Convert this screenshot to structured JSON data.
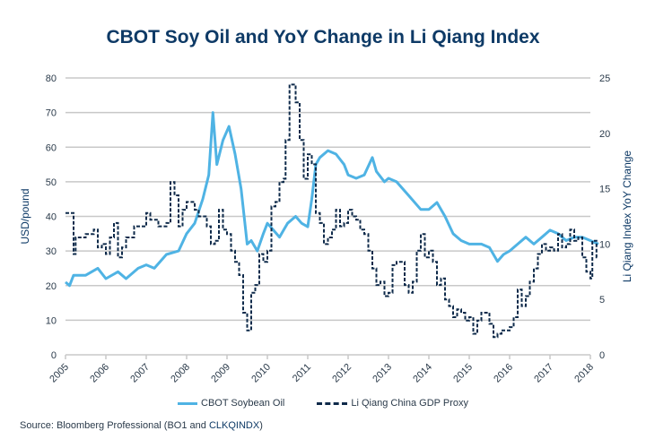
{
  "chart_data": {
    "type": "line",
    "title": "CBOT Soy Oil and YoY Change in Li Qiang Index",
    "ylabel": "USD/pound",
    "y2label": "Li Qiang Index YoY Change",
    "xlabel": "",
    "ylim": [
      0,
      80
    ],
    "y2lim": [
      0,
      25
    ],
    "yticks": [
      "0",
      "10",
      "20",
      "30",
      "40",
      "50",
      "60",
      "70",
      "80"
    ],
    "y2ticks": [
      "0",
      "5",
      "10",
      "15",
      "20",
      "25"
    ],
    "xticks": [
      "2005",
      "2006",
      "2007",
      "2008",
      "2009",
      "2010",
      "2011",
      "2012",
      "2013",
      "2014",
      "2015",
      "2016",
      "2017",
      "2018"
    ],
    "grid": true,
    "legend_position": "bottom",
    "series": [
      {
        "name": "CBOT Soybean Oil",
        "axis": "left",
        "color": "#4fb3e4",
        "style": "solid",
        "points": [
          [
            2005.0,
            21
          ],
          [
            2005.1,
            20
          ],
          [
            2005.2,
            23
          ],
          [
            2005.5,
            23
          ],
          [
            2005.8,
            25
          ],
          [
            2006.0,
            22
          ],
          [
            2006.3,
            24
          ],
          [
            2006.5,
            22
          ],
          [
            2006.8,
            25
          ],
          [
            2007.0,
            26
          ],
          [
            2007.2,
            25
          ],
          [
            2007.5,
            29
          ],
          [
            2007.8,
            30
          ],
          [
            2008.0,
            35
          ],
          [
            2008.2,
            38
          ],
          [
            2008.4,
            45
          ],
          [
            2008.55,
            52
          ],
          [
            2008.65,
            70
          ],
          [
            2008.75,
            55
          ],
          [
            2008.9,
            62
          ],
          [
            2009.05,
            66
          ],
          [
            2009.2,
            58
          ],
          [
            2009.35,
            48
          ],
          [
            2009.5,
            32
          ],
          [
            2009.6,
            33
          ],
          [
            2009.75,
            30
          ],
          [
            2009.9,
            35
          ],
          [
            2010.0,
            38
          ],
          [
            2010.15,
            36
          ],
          [
            2010.3,
            34
          ],
          [
            2010.5,
            38
          ],
          [
            2010.7,
            40
          ],
          [
            2010.85,
            38
          ],
          [
            2011.0,
            37
          ],
          [
            2011.1,
            45
          ],
          [
            2011.2,
            55
          ],
          [
            2011.3,
            57
          ],
          [
            2011.5,
            59
          ],
          [
            2011.7,
            58
          ],
          [
            2011.9,
            55
          ],
          [
            2012.0,
            52
          ],
          [
            2012.2,
            51
          ],
          [
            2012.4,
            52
          ],
          [
            2012.6,
            57
          ],
          [
            2012.7,
            53
          ],
          [
            2012.9,
            50
          ],
          [
            2013.0,
            51
          ],
          [
            2013.2,
            50
          ],
          [
            2013.5,
            46
          ],
          [
            2013.8,
            42
          ],
          [
            2014.0,
            42
          ],
          [
            2014.2,
            44
          ],
          [
            2014.4,
            40
          ],
          [
            2014.6,
            35
          ],
          [
            2014.8,
            33
          ],
          [
            2015.0,
            32
          ],
          [
            2015.3,
            32
          ],
          [
            2015.5,
            31
          ],
          [
            2015.7,
            27
          ],
          [
            2015.85,
            29
          ],
          [
            2016.0,
            30
          ],
          [
            2016.2,
            32
          ],
          [
            2016.4,
            34
          ],
          [
            2016.6,
            32
          ],
          [
            2016.8,
            34
          ],
          [
            2017.0,
            36
          ],
          [
            2017.2,
            35
          ],
          [
            2017.4,
            33
          ],
          [
            2017.6,
            34
          ],
          [
            2017.8,
            34
          ],
          [
            2018.0,
            33
          ],
          [
            2018.2,
            32
          ]
        ]
      },
      {
        "name": "Li Qiang China GDP Proxy",
        "axis": "right",
        "color": "#0e2a4a",
        "style": "dashed-step",
        "points": [
          [
            2005.0,
            12.8
          ],
          [
            2005.2,
            9.1
          ],
          [
            2005.25,
            10.6
          ],
          [
            2005.5,
            10.9
          ],
          [
            2005.7,
            11.3
          ],
          [
            2005.8,
            9.7
          ],
          [
            2005.9,
            10
          ],
          [
            2006.0,
            9.1
          ],
          [
            2006.1,
            10.6
          ],
          [
            2006.2,
            11.9
          ],
          [
            2006.3,
            8.8
          ],
          [
            2006.4,
            9.7
          ],
          [
            2006.5,
            10.6
          ],
          [
            2006.7,
            11.6
          ],
          [
            2007.0,
            12.8
          ],
          [
            2007.1,
            12.2
          ],
          [
            2007.3,
            11.6
          ],
          [
            2007.5,
            11.9
          ],
          [
            2007.6,
            15.6
          ],
          [
            2007.7,
            14.4
          ],
          [
            2007.8,
            11.6
          ],
          [
            2007.9,
            13.1
          ],
          [
            2008.0,
            13.8
          ],
          [
            2008.2,
            13.1
          ],
          [
            2008.3,
            12.5
          ],
          [
            2008.5,
            11.6
          ],
          [
            2008.6,
            10
          ],
          [
            2008.7,
            10.3
          ],
          [
            2008.8,
            13.1
          ],
          [
            2008.9,
            11.3
          ],
          [
            2009.0,
            10.9
          ],
          [
            2009.1,
            9.4
          ],
          [
            2009.2,
            8.4
          ],
          [
            2009.3,
            7.2
          ],
          [
            2009.4,
            3.8
          ],
          [
            2009.5,
            2.2
          ],
          [
            2009.6,
            5.6
          ],
          [
            2009.7,
            6.3
          ],
          [
            2009.8,
            9.1
          ],
          [
            2009.9,
            8.4
          ],
          [
            2010.0,
            9.4
          ],
          [
            2010.1,
            13.4
          ],
          [
            2010.2,
            13.8
          ],
          [
            2010.3,
            15.6
          ],
          [
            2010.4,
            15.9
          ],
          [
            2010.45,
            19.4
          ],
          [
            2010.55,
            24.4
          ],
          [
            2010.7,
            22.8
          ],
          [
            2010.8,
            19.4
          ],
          [
            2010.9,
            15.9
          ],
          [
            2011.0,
            18.1
          ],
          [
            2011.1,
            17.2
          ],
          [
            2011.2,
            12.8
          ],
          [
            2011.3,
            11.9
          ],
          [
            2011.4,
            10
          ],
          [
            2011.5,
            10.6
          ],
          [
            2011.6,
            11.3
          ],
          [
            2011.7,
            13.1
          ],
          [
            2011.8,
            11.6
          ],
          [
            2011.9,
            11.9
          ],
          [
            2012.0,
            13.1
          ],
          [
            2012.1,
            12.5
          ],
          [
            2012.2,
            12.2
          ],
          [
            2012.3,
            11.3
          ],
          [
            2012.4,
            10.9
          ],
          [
            2012.5,
            9.4
          ],
          [
            2012.6,
            7.8
          ],
          [
            2012.7,
            6.3
          ],
          [
            2012.8,
            6.6
          ],
          [
            2012.9,
            5.3
          ],
          [
            2013.0,
            5.6
          ],
          [
            2013.1,
            8.1
          ],
          [
            2013.2,
            8.4
          ],
          [
            2013.4,
            6.3
          ],
          [
            2013.5,
            5.6
          ],
          [
            2013.6,
            6.6
          ],
          [
            2013.7,
            9.4
          ],
          [
            2013.8,
            10.9
          ],
          [
            2013.9,
            8.8
          ],
          [
            2014.0,
            9.4
          ],
          [
            2014.1,
            8.4
          ],
          [
            2014.2,
            6.3
          ],
          [
            2014.3,
            6.9
          ],
          [
            2014.4,
            5
          ],
          [
            2014.5,
            4.4
          ],
          [
            2014.6,
            3.4
          ],
          [
            2014.7,
            4.1
          ],
          [
            2014.8,
            3.8
          ],
          [
            2014.9,
            3.1
          ],
          [
            2015.0,
            3.4
          ],
          [
            2015.1,
            1.9
          ],
          [
            2015.2,
            3.1
          ],
          [
            2015.3,
            3.8
          ],
          [
            2015.5,
            2.8
          ],
          [
            2015.6,
            1.6
          ],
          [
            2015.7,
            1.9
          ],
          [
            2015.8,
            2.2
          ],
          [
            2016.0,
            2.5
          ],
          [
            2016.1,
            3.4
          ],
          [
            2016.2,
            5.9
          ],
          [
            2016.3,
            4.4
          ],
          [
            2016.4,
            5.3
          ],
          [
            2016.5,
            6.6
          ],
          [
            2016.6,
            7.8
          ],
          [
            2016.7,
            9.1
          ],
          [
            2016.8,
            10
          ],
          [
            2016.9,
            9.4
          ],
          [
            2017.0,
            9.7
          ],
          [
            2017.1,
            9.4
          ],
          [
            2017.2,
            10.9
          ],
          [
            2017.3,
            9.7
          ],
          [
            2017.4,
            10
          ],
          [
            2017.5,
            11.3
          ],
          [
            2017.6,
            10.3
          ],
          [
            2017.7,
            10.6
          ],
          [
            2017.8,
            8.8
          ],
          [
            2017.9,
            7.5
          ],
          [
            2018.0,
            6.9
          ],
          [
            2018.05,
            10.3
          ],
          [
            2018.15,
            8.8
          ],
          [
            2018.2,
            8.8
          ]
        ]
      }
    ]
  },
  "source": {
    "prefix": "Source: Bloomberg Professional (BO1 and ",
    "highlight": "CLKQINDX",
    "suffix": ")"
  }
}
